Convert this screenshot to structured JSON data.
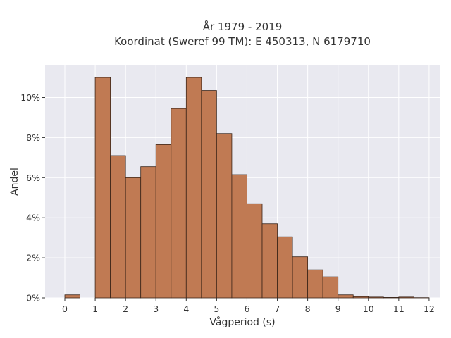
{
  "chart_data": {
    "type": "bar",
    "title": "År 1979 - 2019",
    "subtitle": "Koordinat (Sweref 99 TM): E 450313, N 6179710",
    "xlabel": "Vågperiod (s)",
    "ylabel": "Andel",
    "xlim": [
      -0.65,
      12.35
    ],
    "ylim": [
      0,
      11.6
    ],
    "x_ticks": [
      0,
      1,
      2,
      3,
      4,
      5,
      6,
      7,
      8,
      9,
      10,
      11,
      12
    ],
    "y_ticks": [
      0,
      2,
      4,
      6,
      8,
      10
    ],
    "y_tick_labels": [
      "0%",
      "2%",
      "4%",
      "6%",
      "8%",
      "10%"
    ],
    "bin_width": 0.5,
    "bins": [
      {
        "start": 0.0,
        "value": 0.15
      },
      {
        "start": 0.5,
        "value": 0.0
      },
      {
        "start": 1.0,
        "value": 11.0
      },
      {
        "start": 1.5,
        "value": 7.1
      },
      {
        "start": 2.0,
        "value": 6.0
      },
      {
        "start": 2.5,
        "value": 6.55
      },
      {
        "start": 3.0,
        "value": 7.65
      },
      {
        "start": 3.5,
        "value": 9.45
      },
      {
        "start": 4.0,
        "value": 11.0
      },
      {
        "start": 4.5,
        "value": 10.35
      },
      {
        "start": 5.0,
        "value": 8.2
      },
      {
        "start": 5.5,
        "value": 6.15
      },
      {
        "start": 6.0,
        "value": 4.7
      },
      {
        "start": 6.5,
        "value": 3.7
      },
      {
        "start": 7.0,
        "value": 3.05
      },
      {
        "start": 7.5,
        "value": 2.05
      },
      {
        "start": 8.0,
        "value": 1.4
      },
      {
        "start": 8.5,
        "value": 1.05
      },
      {
        "start": 9.0,
        "value": 0.15
      },
      {
        "start": 9.5,
        "value": 0.06
      },
      {
        "start": 10.0,
        "value": 0.04
      },
      {
        "start": 10.5,
        "value": 0.02
      },
      {
        "start": 11.0,
        "value": 0.04
      },
      {
        "start": 11.5,
        "value": 0.01
      }
    ],
    "grid": true,
    "colors": {
      "bar_fill": "#c07a53",
      "bar_edge": "#3a2418",
      "plot_background": "#e9e9f0",
      "grid": "#ffffff"
    }
  }
}
